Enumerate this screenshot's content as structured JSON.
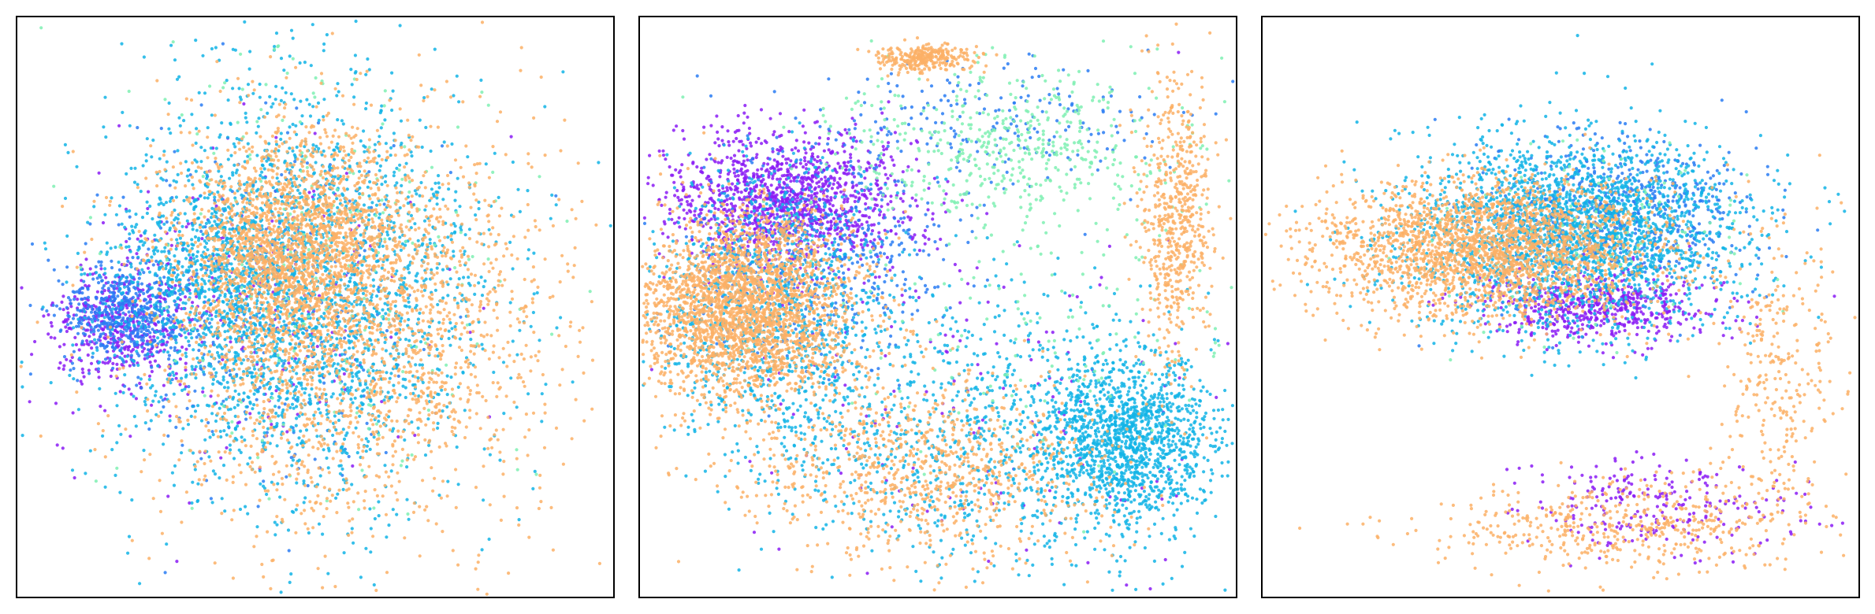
{
  "chart_data": [
    {
      "type": "scatter",
      "title": "",
      "xlabel": "",
      "ylabel": "",
      "grid": false,
      "legend": "none",
      "axes_ticks": false,
      "xlim": [
        0,
        1
      ],
      "ylim": [
        0,
        1
      ],
      "series": [
        {
          "color": "#8b1cf5",
          "clusters": [
            {
              "cx": 0.18,
              "cy": 0.53,
              "sx": 0.06,
              "sy": 0.05,
              "n": 450
            },
            {
              "cx": 0.36,
              "cy": 0.52,
              "sx": 0.16,
              "sy": 0.15,
              "n": 250
            }
          ]
        },
        {
          "color": "#2a7df3",
          "clusters": [
            {
              "cx": 0.18,
              "cy": 0.51,
              "sx": 0.05,
              "sy": 0.04,
              "n": 500
            },
            {
              "cx": 0.4,
              "cy": 0.5,
              "sx": 0.14,
              "sy": 0.14,
              "n": 350
            }
          ]
        },
        {
          "color": "#12b4e6",
          "clusters": [
            {
              "cx": 0.47,
              "cy": 0.48,
              "sx": 0.16,
              "sy": 0.17,
              "n": 2600
            },
            {
              "cx": 0.34,
              "cy": 0.44,
              "sx": 0.08,
              "sy": 0.08,
              "n": 500
            }
          ]
        },
        {
          "color": "#7ff0b3",
          "clusters": [
            {
              "cx": 0.5,
              "cy": 0.42,
              "sx": 0.18,
              "sy": 0.2,
              "n": 250
            }
          ]
        },
        {
          "color": "#fbb066",
          "clusters": [
            {
              "cx": 0.46,
              "cy": 0.4,
              "sx": 0.09,
              "sy": 0.09,
              "n": 1800
            },
            {
              "cx": 0.55,
              "cy": 0.55,
              "sx": 0.18,
              "sy": 0.18,
              "n": 1500
            },
            {
              "cx": 0.62,
              "cy": 0.5,
              "sx": 0.16,
              "sy": 0.17,
              "n": 500
            }
          ]
        }
      ]
    },
    {
      "type": "scatter",
      "title": "",
      "xlabel": "",
      "ylabel": "",
      "grid": false,
      "legend": "none",
      "axes_ticks": false,
      "xlim": [
        0,
        1
      ],
      "ylim": [
        0,
        1
      ],
      "series": [
        {
          "color": "#8b1cf5",
          "clusters": [
            {
              "cx": 0.24,
              "cy": 0.32,
              "sx": 0.1,
              "sy": 0.06,
              "n": 1300
            },
            {
              "cx": 0.55,
              "cy": 0.66,
              "sx": 0.2,
              "sy": 0.16,
              "n": 150
            }
          ]
        },
        {
          "color": "#2a7df3",
          "clusters": [
            {
              "cx": 0.3,
              "cy": 0.4,
              "sx": 0.12,
              "sy": 0.1,
              "n": 500
            },
            {
              "cx": 0.6,
              "cy": 0.18,
              "sx": 0.15,
              "sy": 0.05,
              "n": 200
            }
          ]
        },
        {
          "color": "#12b4e6",
          "clusters": [
            {
              "cx": 0.22,
              "cy": 0.5,
              "sx": 0.1,
              "sy": 0.12,
              "n": 1100
            },
            {
              "cx": 0.82,
              "cy": 0.73,
              "sx": 0.07,
              "sy": 0.07,
              "n": 1300
            },
            {
              "cx": 0.58,
              "cy": 0.72,
              "sx": 0.18,
              "sy": 0.12,
              "n": 1000
            }
          ]
        },
        {
          "color": "#7ff0b3",
          "clusters": [
            {
              "cx": 0.62,
              "cy": 0.22,
              "sx": 0.14,
              "sy": 0.07,
              "n": 500
            },
            {
              "cx": 0.7,
              "cy": 0.48,
              "sx": 0.15,
              "sy": 0.15,
              "n": 150
            }
          ]
        },
        {
          "color": "#fbb066",
          "clusters": [
            {
              "cx": 0.18,
              "cy": 0.5,
              "sx": 0.09,
              "sy": 0.08,
              "n": 2600
            },
            {
              "cx": 0.9,
              "cy": 0.35,
              "sx": 0.03,
              "sy": 0.12,
              "n": 600
            },
            {
              "cx": 0.48,
              "cy": 0.78,
              "sx": 0.15,
              "sy": 0.08,
              "n": 900
            },
            {
              "cx": 0.48,
              "cy": 0.07,
              "sx": 0.04,
              "sy": 0.012,
              "n": 300
            }
          ]
        }
      ]
    },
    {
      "type": "scatter",
      "title": "",
      "xlabel": "",
      "ylabel": "",
      "grid": false,
      "legend": "none",
      "axes_ticks": false,
      "xlim": [
        0,
        1
      ],
      "ylim": [
        0,
        1
      ],
      "series": [
        {
          "color": "#8b1cf5",
          "clusters": [
            {
              "cx": 0.56,
              "cy": 0.5,
              "sx": 0.09,
              "sy": 0.03,
              "n": 600
            },
            {
              "cx": 0.66,
              "cy": 0.84,
              "sx": 0.12,
              "sy": 0.04,
              "n": 250
            }
          ]
        },
        {
          "color": "#2a7df3",
          "clusters": [
            {
              "cx": 0.58,
              "cy": 0.34,
              "sx": 0.11,
              "sy": 0.07,
              "n": 700
            }
          ]
        },
        {
          "color": "#12b4e6",
          "clusters": [
            {
              "cx": 0.52,
              "cy": 0.37,
              "sx": 0.14,
              "sy": 0.08,
              "n": 2400
            }
          ]
        },
        {
          "color": "#7ff0b3",
          "clusters": [
            {
              "cx": 0.55,
              "cy": 0.38,
              "sx": 0.15,
              "sy": 0.09,
              "n": 120
            }
          ]
        },
        {
          "color": "#fbb066",
          "clusters": [
            {
              "cx": 0.38,
              "cy": 0.4,
              "sx": 0.14,
              "sy": 0.06,
              "n": 2400
            },
            {
              "cx": 0.6,
              "cy": 0.88,
              "sx": 0.16,
              "sy": 0.04,
              "n": 500
            },
            {
              "cx": 0.86,
              "cy": 0.62,
              "sx": 0.05,
              "sy": 0.14,
              "n": 300
            }
          ]
        }
      ]
    }
  ]
}
